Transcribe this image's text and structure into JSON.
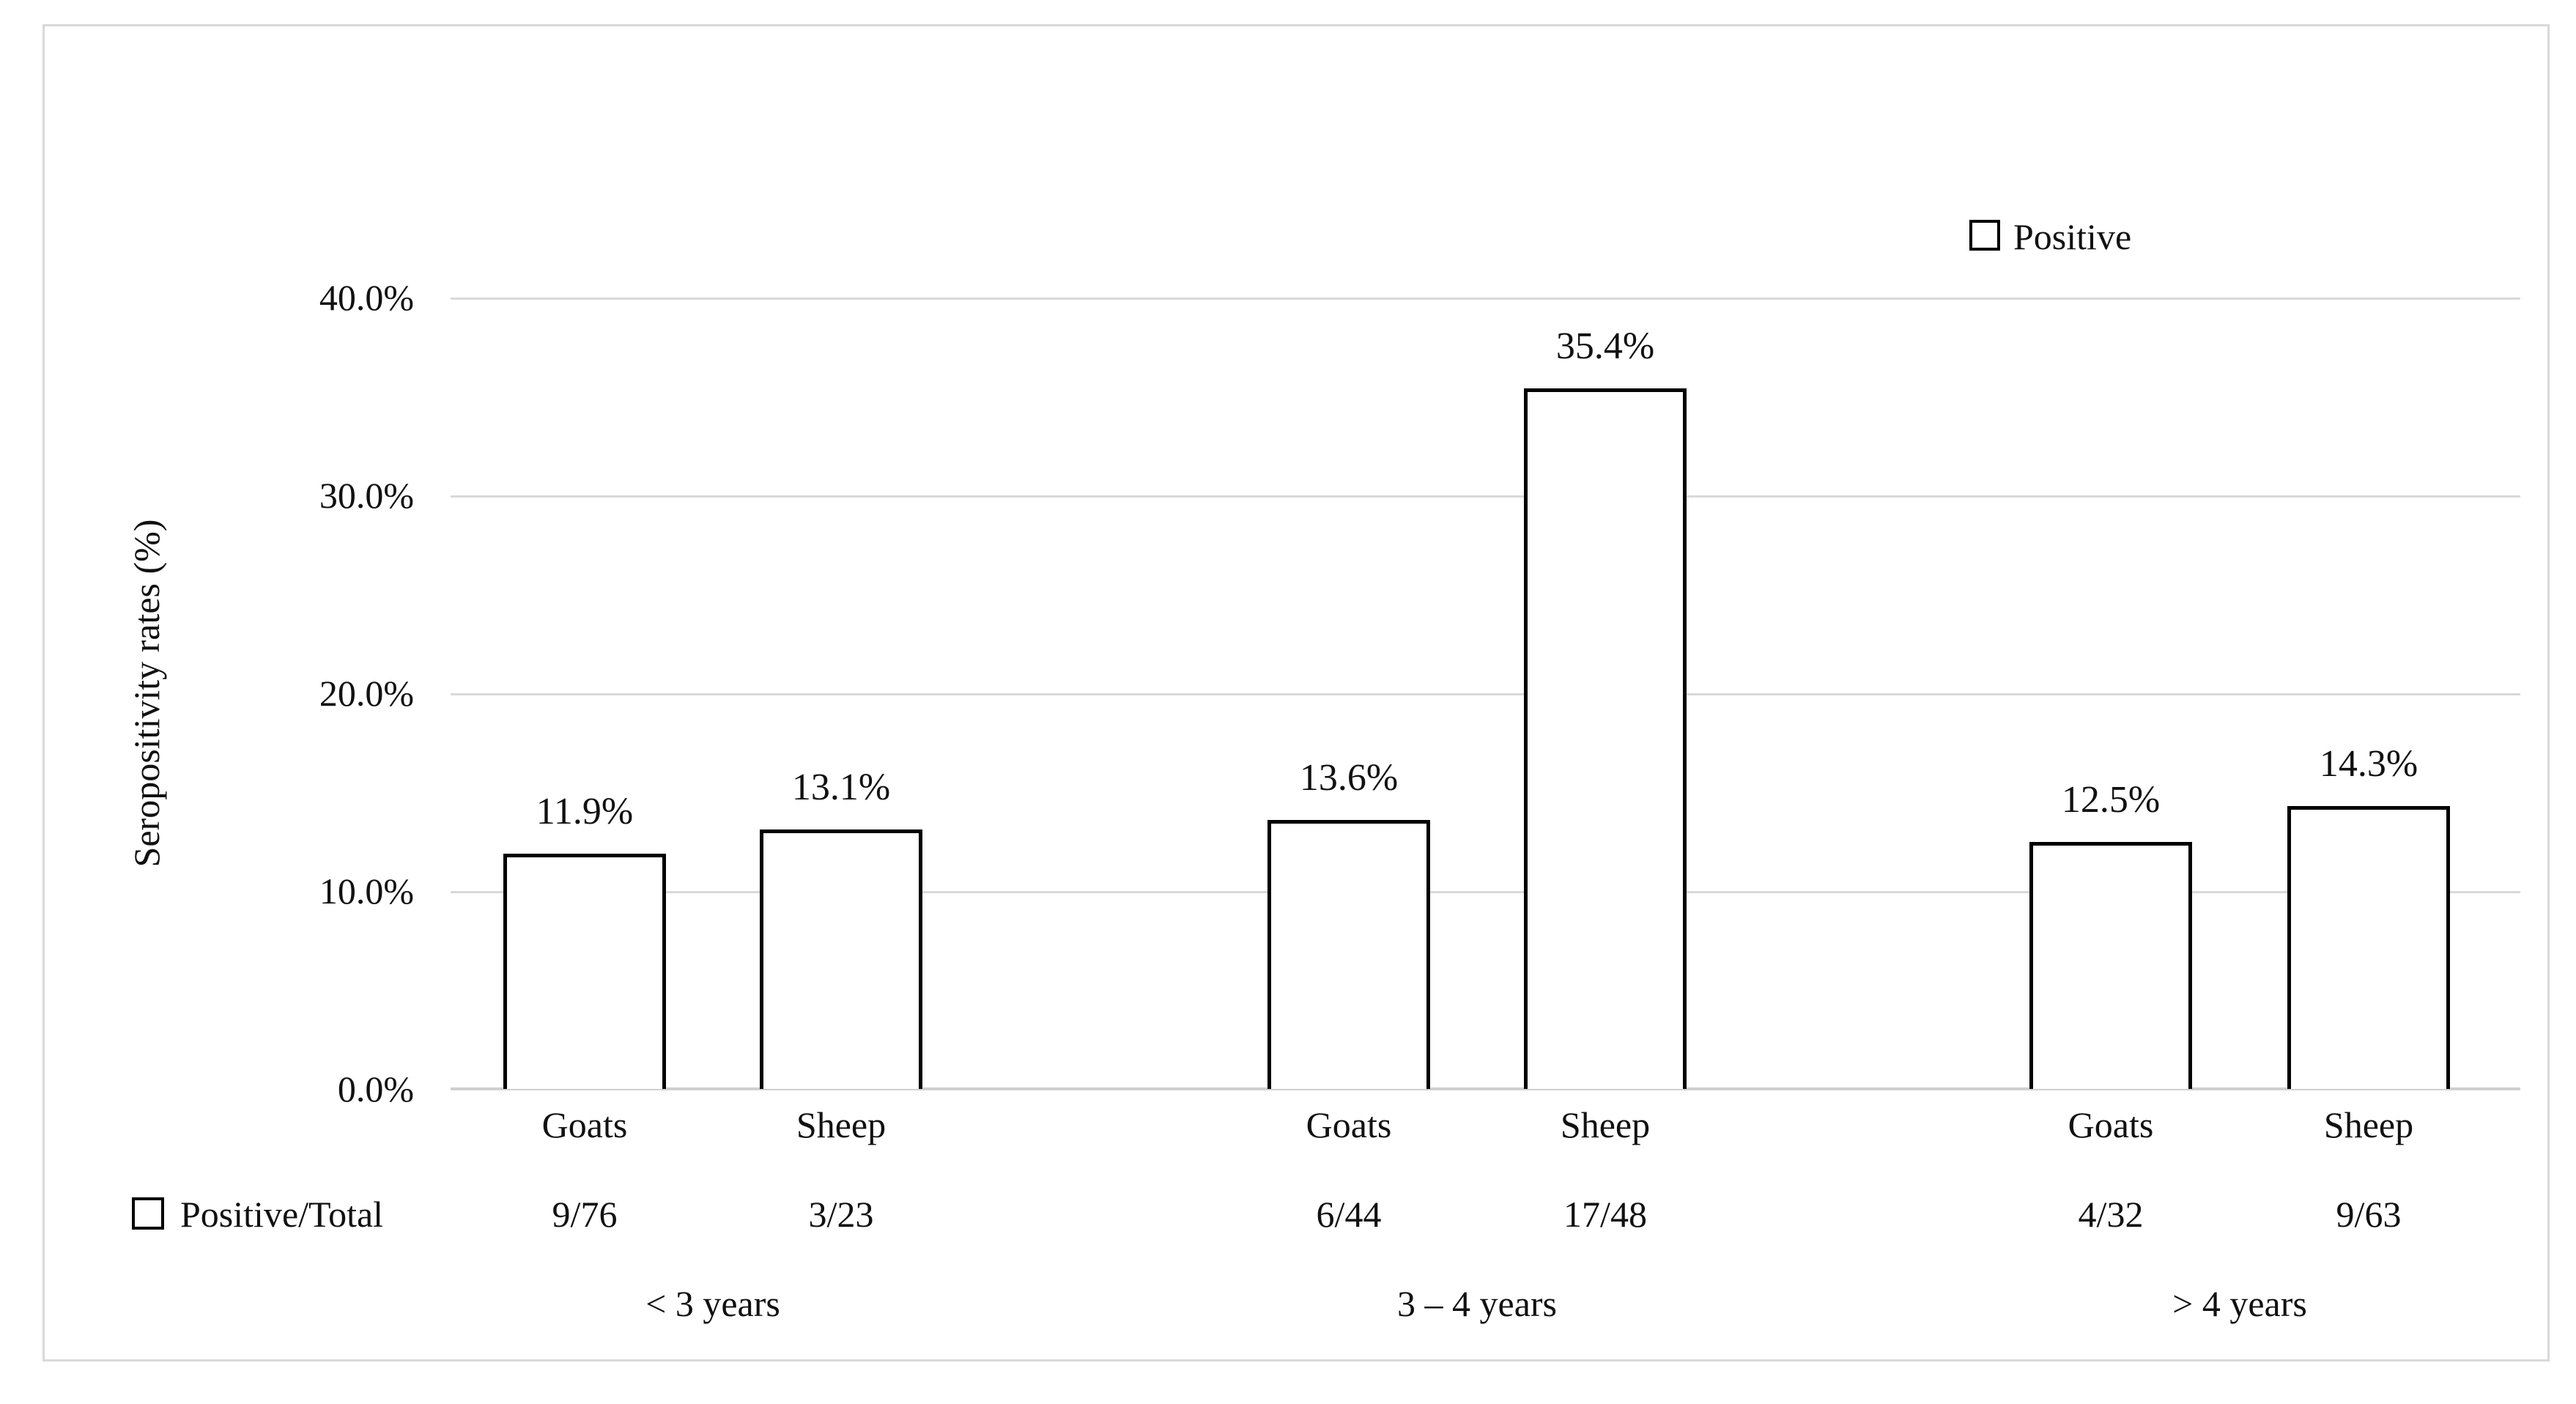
{
  "chart_data": {
    "type": "bar",
    "title": "",
    "ylabel": "Seropositivity rates (%)",
    "xlabel": "",
    "ylim": [
      0,
      40
    ],
    "y_tick_labels": [
      "0.0%",
      "10.0%",
      "20.0%",
      "30.0%",
      "40.0%"
    ],
    "grid": true,
    "legend_position": "top-right",
    "legend_label": "Positive",
    "row_header": "Positive/Total",
    "groups": [
      {
        "age_group": "< 3 years",
        "bars": [
          {
            "category": "Goats",
            "value_pct": 11.9,
            "value_label": "11.9%",
            "positive_total": "9/76"
          },
          {
            "category": "Sheep",
            "value_pct": 13.1,
            "value_label": "13.1%",
            "positive_total": "3/23"
          }
        ]
      },
      {
        "age_group": "3 – 4 years",
        "bars": [
          {
            "category": "Goats",
            "value_pct": 13.6,
            "value_label": "13.6%",
            "positive_total": "6/44"
          },
          {
            "category": "Sheep",
            "value_pct": 35.4,
            "value_label": "35.4%",
            "positive_total": "17/48"
          }
        ]
      },
      {
        "age_group": "> 4 years",
        "bars": [
          {
            "category": "Goats",
            "value_pct": 12.5,
            "value_label": "12.5%",
            "positive_total": "4/32"
          },
          {
            "category": "Sheep",
            "value_pct": 14.3,
            "value_label": "14.3%",
            "positive_total": "9/63"
          }
        ]
      }
    ],
    "colors": {
      "bar_fill": "#ffffff",
      "bar_border": "#000000",
      "gridline": "#d9d9d9",
      "axis_line": "#cfcfcf",
      "text": "#111111",
      "figure_border": "#d9d9d9"
    }
  }
}
